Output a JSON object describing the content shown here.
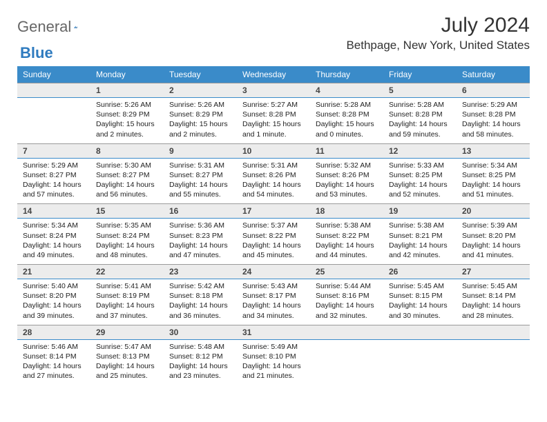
{
  "logo": {
    "text1": "General",
    "text2": "Blue"
  },
  "title": "July 2024",
  "location": "Bethpage, New York, United States",
  "header_bg": "#3a8bc9",
  "weekdays": [
    "Sunday",
    "Monday",
    "Tuesday",
    "Wednesday",
    "Thursday",
    "Friday",
    "Saturday"
  ],
  "start_offset": 1,
  "days": [
    {
      "n": 1,
      "sr": "5:26 AM",
      "ss": "8:29 PM",
      "dl1": "15 hours",
      "dl2": "and 2 minutes."
    },
    {
      "n": 2,
      "sr": "5:26 AM",
      "ss": "8:29 PM",
      "dl1": "15 hours",
      "dl2": "and 2 minutes."
    },
    {
      "n": 3,
      "sr": "5:27 AM",
      "ss": "8:28 PM",
      "dl1": "15 hours",
      "dl2": "and 1 minute."
    },
    {
      "n": 4,
      "sr": "5:28 AM",
      "ss": "8:28 PM",
      "dl1": "15 hours",
      "dl2": "and 0 minutes."
    },
    {
      "n": 5,
      "sr": "5:28 AM",
      "ss": "8:28 PM",
      "dl1": "14 hours",
      "dl2": "and 59 minutes."
    },
    {
      "n": 6,
      "sr": "5:29 AM",
      "ss": "8:28 PM",
      "dl1": "14 hours",
      "dl2": "and 58 minutes."
    },
    {
      "n": 7,
      "sr": "5:29 AM",
      "ss": "8:27 PM",
      "dl1": "14 hours",
      "dl2": "and 57 minutes."
    },
    {
      "n": 8,
      "sr": "5:30 AM",
      "ss": "8:27 PM",
      "dl1": "14 hours",
      "dl2": "and 56 minutes."
    },
    {
      "n": 9,
      "sr": "5:31 AM",
      "ss": "8:27 PM",
      "dl1": "14 hours",
      "dl2": "and 55 minutes."
    },
    {
      "n": 10,
      "sr": "5:31 AM",
      "ss": "8:26 PM",
      "dl1": "14 hours",
      "dl2": "and 54 minutes."
    },
    {
      "n": 11,
      "sr": "5:32 AM",
      "ss": "8:26 PM",
      "dl1": "14 hours",
      "dl2": "and 53 minutes."
    },
    {
      "n": 12,
      "sr": "5:33 AM",
      "ss": "8:25 PM",
      "dl1": "14 hours",
      "dl2": "and 52 minutes."
    },
    {
      "n": 13,
      "sr": "5:34 AM",
      "ss": "8:25 PM",
      "dl1": "14 hours",
      "dl2": "and 51 minutes."
    },
    {
      "n": 14,
      "sr": "5:34 AM",
      "ss": "8:24 PM",
      "dl1": "14 hours",
      "dl2": "and 49 minutes."
    },
    {
      "n": 15,
      "sr": "5:35 AM",
      "ss": "8:24 PM",
      "dl1": "14 hours",
      "dl2": "and 48 minutes."
    },
    {
      "n": 16,
      "sr": "5:36 AM",
      "ss": "8:23 PM",
      "dl1": "14 hours",
      "dl2": "and 47 minutes."
    },
    {
      "n": 17,
      "sr": "5:37 AM",
      "ss": "8:22 PM",
      "dl1": "14 hours",
      "dl2": "and 45 minutes."
    },
    {
      "n": 18,
      "sr": "5:38 AM",
      "ss": "8:22 PM",
      "dl1": "14 hours",
      "dl2": "and 44 minutes."
    },
    {
      "n": 19,
      "sr": "5:38 AM",
      "ss": "8:21 PM",
      "dl1": "14 hours",
      "dl2": "and 42 minutes."
    },
    {
      "n": 20,
      "sr": "5:39 AM",
      "ss": "8:20 PM",
      "dl1": "14 hours",
      "dl2": "and 41 minutes."
    },
    {
      "n": 21,
      "sr": "5:40 AM",
      "ss": "8:20 PM",
      "dl1": "14 hours",
      "dl2": "and 39 minutes."
    },
    {
      "n": 22,
      "sr": "5:41 AM",
      "ss": "8:19 PM",
      "dl1": "14 hours",
      "dl2": "and 37 minutes."
    },
    {
      "n": 23,
      "sr": "5:42 AM",
      "ss": "8:18 PM",
      "dl1": "14 hours",
      "dl2": "and 36 minutes."
    },
    {
      "n": 24,
      "sr": "5:43 AM",
      "ss": "8:17 PM",
      "dl1": "14 hours",
      "dl2": "and 34 minutes."
    },
    {
      "n": 25,
      "sr": "5:44 AM",
      "ss": "8:16 PM",
      "dl1": "14 hours",
      "dl2": "and 32 minutes."
    },
    {
      "n": 26,
      "sr": "5:45 AM",
      "ss": "8:15 PM",
      "dl1": "14 hours",
      "dl2": "and 30 minutes."
    },
    {
      "n": 27,
      "sr": "5:45 AM",
      "ss": "8:14 PM",
      "dl1": "14 hours",
      "dl2": "and 28 minutes."
    },
    {
      "n": 28,
      "sr": "5:46 AM",
      "ss": "8:14 PM",
      "dl1": "14 hours",
      "dl2": "and 27 minutes."
    },
    {
      "n": 29,
      "sr": "5:47 AM",
      "ss": "8:13 PM",
      "dl1": "14 hours",
      "dl2": "and 25 minutes."
    },
    {
      "n": 30,
      "sr": "5:48 AM",
      "ss": "8:12 PM",
      "dl1": "14 hours",
      "dl2": "and 23 minutes."
    },
    {
      "n": 31,
      "sr": "5:49 AM",
      "ss": "8:10 PM",
      "dl1": "14 hours",
      "dl2": "and 21 minutes."
    }
  ]
}
